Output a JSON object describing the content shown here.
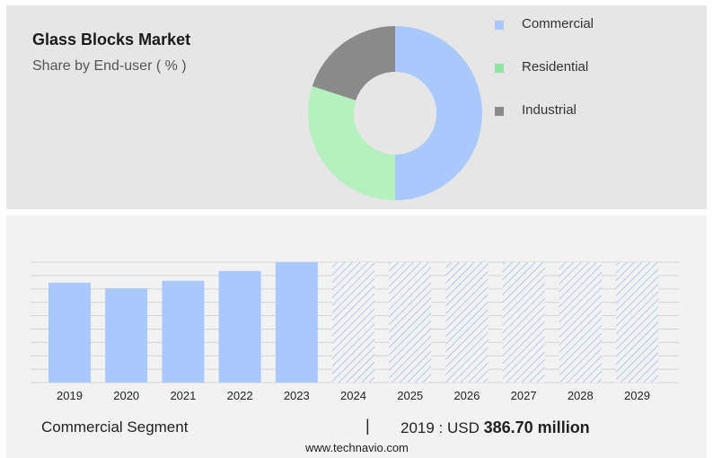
{
  "header": {
    "title": "Glass Blocks Market",
    "subtitle": "Share by End-user ( % )"
  },
  "legend": [
    {
      "label": "Commercial",
      "color": "#a9c8fb"
    },
    {
      "label": "Residential",
      "color": "#8ee4a4"
    },
    {
      "label": "Industrial",
      "color": "#8a8a8a"
    }
  ],
  "chart_data": [
    {
      "type": "pie",
      "title": "Share by End-user ( % )",
      "donut": true,
      "slices": [
        {
          "label": "Commercial",
          "value": 50,
          "color": "#a9c8fb"
        },
        {
          "label": "Residential",
          "value": 30,
          "color": "#b5f0bf"
        },
        {
          "label": "Industrial",
          "value": 20,
          "color": "#8a8a8a"
        }
      ]
    },
    {
      "type": "bar",
      "categories": [
        "2019",
        "2020",
        "2021",
        "2022",
        "2023",
        "2024",
        "2025",
        "2026",
        "2027",
        "2028",
        "2029"
      ],
      "values": [
        386.7,
        365,
        394,
        432,
        466,
        null,
        null,
        null,
        null,
        null,
        null
      ],
      "forecast": [
        false,
        false,
        false,
        false,
        false,
        true,
        true,
        true,
        true,
        true,
        true
      ],
      "ylim": [
        0,
        466
      ],
      "grid": true,
      "bar_color": "#a9c8fb",
      "forecast_pattern": "diagonal-hatch"
    }
  ],
  "footer": {
    "segment_label": "Commercial Segment",
    "separator": "|",
    "value_prefix": "2019 : USD",
    "value_amount": "386.70 million",
    "url": "www.technavio.com"
  }
}
